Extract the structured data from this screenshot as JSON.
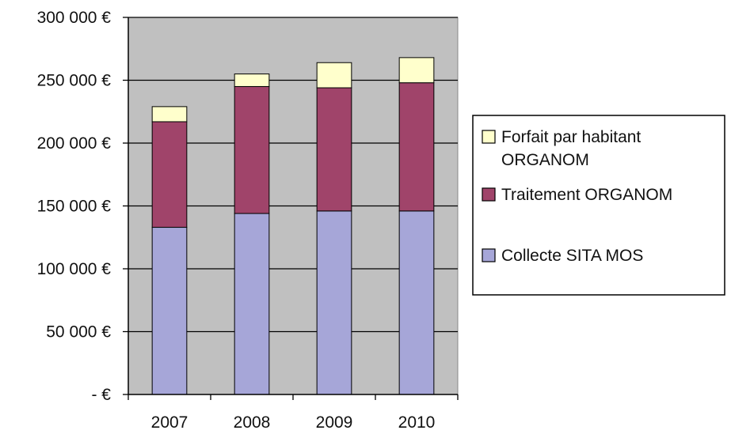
{
  "chart_data": {
    "type": "bar",
    "stacked": true,
    "categories": [
      "2007",
      "2008",
      "2009",
      "2010"
    ],
    "series": [
      {
        "name": "Collecte SITA MOS",
        "values": [
          133000,
          144000,
          146000,
          146000
        ],
        "color": "#A6A6D8"
      },
      {
        "name": "Traitement ORGANOM",
        "values": [
          84000,
          101000,
          98000,
          102000
        ],
        "color": "#A0446A"
      },
      {
        "name": "Forfait par habitant ORGANOM",
        "values": [
          12000,
          10000,
          20000,
          20000
        ],
        "color": "#FFFFCC"
      }
    ],
    "legend_order": [
      "Forfait par habitant ORGANOM",
      "Traitement ORGANOM",
      "Collecte SITA MOS"
    ],
    "legend_lines": {
      "Forfait par habitant ORGANOM": [
        "Forfait par habitant",
        "ORGANOM"
      ],
      "Traitement ORGANOM": [
        "Traitement ORGANOM"
      ],
      "Collecte SITA MOS": [
        "Collecte SITA MOS"
      ]
    },
    "y_tick_values": [
      0,
      50000,
      100000,
      150000,
      200000,
      250000,
      300000
    ],
    "y_tick_labels": [
      "- €",
      "50 000 €",
      "100 000 €",
      "150 000 €",
      "200 000 €",
      "250 000 €",
      "300 000 €"
    ],
    "ylim": [
      0,
      300000
    ],
    "grid": true,
    "plot_background": "#C0C0C0",
    "legend_position": "right",
    "title": "",
    "xlabel": "",
    "ylabel": ""
  }
}
